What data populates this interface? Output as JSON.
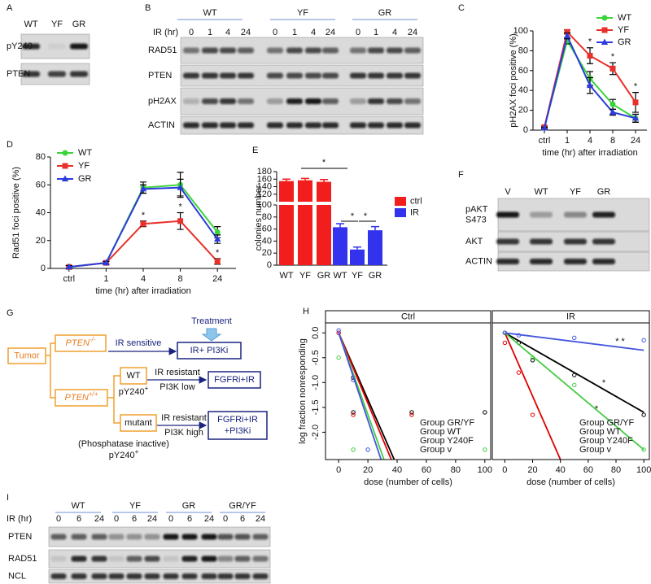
{
  "panel_letters": [
    "A",
    "B",
    "C",
    "D",
    "E",
    "F",
    "G",
    "H",
    "I"
  ],
  "blots": {
    "A": {
      "lanes": [
        "WT",
        "YF",
        "GR"
      ],
      "rows": [
        "pY240",
        "PTEN"
      ]
    },
    "B": {
      "groups": [
        "WT",
        "YF",
        "GR"
      ],
      "axis_label": "IR (hr)",
      "lanes": [
        0,
        1,
        4,
        24,
        0,
        1,
        4,
        24,
        0,
        1,
        4,
        24
      ],
      "rows": [
        "RAD51",
        "PTEN",
        "pH2AX",
        "ACTIN"
      ]
    },
    "F": {
      "lanes": [
        "V",
        "WT",
        "YF",
        "GR"
      ],
      "rows": [
        [
          "pAKT",
          "S473"
        ],
        "AKT",
        "ACTIN"
      ]
    },
    "I": {
      "groups": [
        "WT",
        "YF",
        "GR",
        "GR/YF"
      ],
      "axis_label": "IR (hr)",
      "lanes": [
        0,
        6,
        24,
        0,
        6,
        24,
        0,
        6,
        24,
        0,
        6,
        24
      ],
      "rows": [
        "PTEN",
        "RAD51",
        "NCL"
      ]
    }
  },
  "diagram": {
    "tumor": "Tumor",
    "pten_null": {
      "label": "PTEN",
      "sup": "-/-"
    },
    "pten_wt": {
      "label": "PTEN",
      "sup": "+/+"
    },
    "ir_sensitive": "IR sensitive",
    "treatment": "Treatment",
    "ir_pi3ki": "IR+ PI3Ki",
    "wt": "WT",
    "wt_py240": {
      "label": "pY240",
      "sup": "+"
    },
    "ir_resistant_low": [
      "IR resistant",
      "PI3K low"
    ],
    "fgfri_ir": "FGFRi+IR",
    "mutant": "mutant",
    "phosphatase": "(Phosphatase inactive)",
    "mutant_py240": {
      "label": "pY240",
      "sup": "+"
    },
    "ir_resistant_high": [
      "IR resistant",
      "PI3K high"
    ],
    "fgfri_ir_pi3ki": [
      "FGFRi+IR",
      "+PI3Ki"
    ]
  },
  "chart_data": [
    {
      "type": "line",
      "y_label": "pH2AX foci positive (%)",
      "x_label": "time (hr) after irradiation",
      "categories": [
        "ctrl",
        "1",
        "4",
        "8",
        "24"
      ],
      "ylim": [
        0,
        100
      ],
      "yticks": [
        0,
        20,
        40,
        60,
        80,
        100
      ],
      "series": [
        {
          "name": "WT",
          "color": "#3bd43b",
          "values": [
            3,
            90,
            52,
            26,
            12
          ],
          "errors": [
            1,
            3,
            7,
            5,
            4
          ]
        },
        {
          "name": "YF",
          "color": "#e8312a",
          "values": [
            3,
            99,
            75,
            62,
            28
          ],
          "errors": [
            1,
            2,
            8,
            6,
            10
          ]
        },
        {
          "name": "GR",
          "color": "#2b3cdb",
          "values": [
            2,
            95,
            45,
            18,
            12
          ],
          "errors": [
            1,
            3,
            8,
            3,
            4
          ]
        }
      ],
      "annotations": [
        "*",
        "*",
        "*"
      ]
    },
    {
      "type": "line",
      "y_label": "Rad51 foci positive (%)",
      "x_label": "time (hr) after irradiation",
      "categories": [
        "ctrl",
        "1",
        "4",
        "8",
        "24"
      ],
      "ylim": [
        0,
        80
      ],
      "yticks": [
        0,
        20,
        40,
        60,
        80
      ],
      "series": [
        {
          "name": "WT",
          "color": "#3bd43b",
          "values": [
            1,
            4,
            58,
            60,
            26
          ],
          "errors": [
            1,
            1,
            4,
            9,
            4
          ]
        },
        {
          "name": "YF",
          "color": "#e8312a",
          "values": [
            1,
            4,
            32,
            34,
            5
          ],
          "errors": [
            1,
            1,
            2,
            6,
            2
          ]
        },
        {
          "name": "GR",
          "color": "#2b3cdb",
          "values": [
            1,
            4,
            57,
            58,
            21
          ],
          "errors": [
            1,
            1,
            3,
            6,
            3
          ]
        }
      ],
      "annotations": [
        "*",
        "*",
        "*"
      ]
    },
    {
      "type": "bar",
      "y_label": "colonies number",
      "categories": [
        "WT",
        "YF",
        "GR",
        "WT",
        "YF",
        "GR"
      ],
      "ylim": [
        0,
        180
      ],
      "ybreak": 100,
      "yticks": [
        0,
        20,
        40,
        60,
        80,
        100,
        120,
        140,
        160,
        180
      ],
      "series": [
        {
          "name": "ctrl",
          "color": "#f21e1e",
          "values": [
            155,
            157,
            153,
            null,
            null,
            null
          ],
          "errors": [
            5,
            5,
            6,
            null,
            null,
            null
          ]
        },
        {
          "name": "IR",
          "color": "#3333ee",
          "values": [
            null,
            null,
            null,
            63,
            26,
            58
          ],
          "errors": [
            null,
            null,
            null,
            6,
            4,
            6
          ]
        }
      ],
      "annotations": [
        "*",
        "*",
        "*"
      ]
    },
    {
      "type": "line",
      "title": "Ctrl",
      "y_label": "log fraction nonresponding",
      "x_label": "dose (number of cells)",
      "xlim": [
        -9,
        104
      ],
      "ylim": [
        -2.55,
        0.2
      ],
      "xticks": [
        0,
        20,
        40,
        60,
        80,
        100
      ],
      "yticks": [
        {
          "value": 0,
          "label": "0.0"
        },
        -0.5,
        {
          "value": -1,
          "label": "-1.0"
        },
        -1.5,
        {
          "value": -2,
          "label": "-2.0"
        }
      ],
      "series": [
        {
          "name": "Group GR/YF",
          "color": "#000000",
          "x": [
            0,
            38
          ],
          "values": [
            0,
            -2.55
          ],
          "points_x": [
            10,
            10,
            50,
            100
          ],
          "points_y": [
            -0.9,
            -1.6,
            -1.6,
            -1.6
          ]
        },
        {
          "name": "Group WT",
          "color": "#e00000",
          "x": [
            0,
            36
          ],
          "values": [
            0,
            -2.55
          ],
          "points_x": [
            0,
            10,
            50
          ],
          "points_y": [
            0,
            -1.65,
            -1.65
          ]
        },
        {
          "name": "Group Y240F",
          "color": "#44cc44",
          "x": [
            0,
            31
          ],
          "values": [
            0,
            -2.55
          ],
          "points_x": [
            0,
            10,
            100
          ],
          "points_y": [
            -0.5,
            -2.35,
            -2.35
          ]
        },
        {
          "name": "Group v",
          "color": "#4455dd",
          "x": [
            0,
            29
          ],
          "values": [
            0,
            -2.55
          ],
          "points_x": [
            0,
            10,
            20
          ],
          "points_y": [
            0.05,
            -0.95,
            -2.35
          ]
        }
      ]
    },
    {
      "type": "line",
      "title": "IR",
      "x_label": "dose (number of cells)",
      "xlim": [
        -9,
        104
      ],
      "ylim": [
        -2.55,
        0.2
      ],
      "xticks": [
        0,
        20,
        40,
        60,
        80,
        100
      ],
      "series": [
        {
          "name": "Group GR/YF",
          "color": "#000000",
          "x": [
            0,
            100
          ],
          "values": [
            0,
            -1.6
          ],
          "points_x": [
            0,
            10,
            20,
            50,
            100
          ],
          "points_y": [
            0,
            -0.2,
            -0.55,
            -0.85,
            -1.65
          ]
        },
        {
          "name": "Group WT",
          "color": "#e00000",
          "x": [
            0,
            40
          ],
          "values": [
            0,
            -2.55
          ],
          "points_x": [
            0,
            10,
            20
          ],
          "points_y": [
            -0.2,
            -0.8,
            -1.65
          ]
        },
        {
          "name": "Group Y240F",
          "color": "#44cc44",
          "x": [
            0,
            100
          ],
          "values": [
            0,
            -2.35
          ],
          "points_x": [
            0,
            20,
            50,
            100
          ],
          "points_y": [
            0,
            -0.5,
            -1.05,
            -2.35
          ]
        },
        {
          "name": "Group v",
          "color": "#4455dd",
          "x": [
            0,
            100
          ],
          "values": [
            0,
            -0.35
          ],
          "points_x": [
            0,
            10,
            50,
            100
          ],
          "points_y": [
            0,
            -0.05,
            -0.1,
            -0.15
          ]
        }
      ],
      "annotations": [
        "* *",
        "*",
        "*"
      ]
    }
  ]
}
